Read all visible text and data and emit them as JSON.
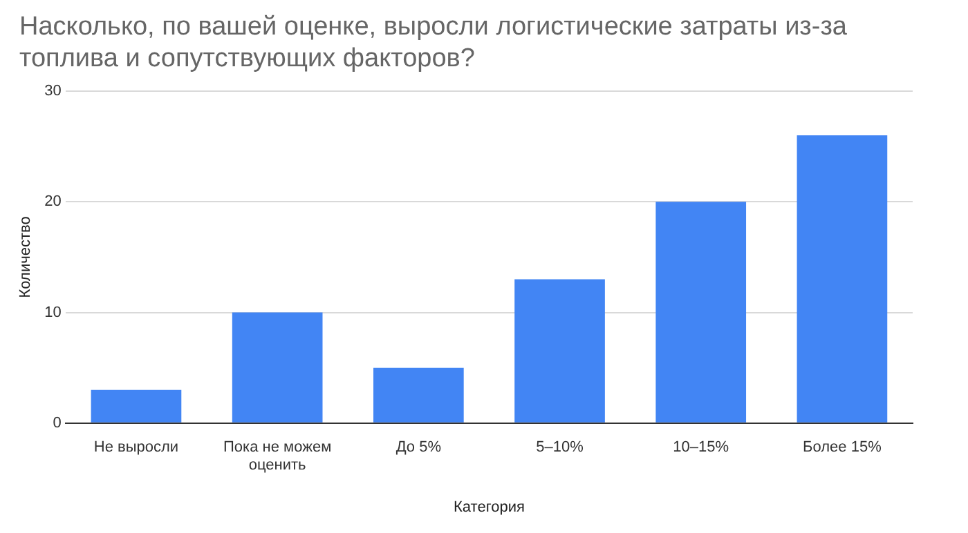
{
  "chart_data": {
    "type": "bar",
    "title": "Насколько, по вашей оценке, выросли логистические затраты из-за топлива и сопутствующих факторов?",
    "xlabel": "Категория",
    "ylabel": "Количество",
    "categories": [
      "Не выросли",
      "Пока не можем оценить",
      "До 5%",
      "5–10%",
      "10–15%",
      "Более 15%"
    ],
    "values": [
      3,
      10,
      5,
      13,
      20,
      26
    ],
    "color": "#4285f4",
    "ylim": [
      0,
      30
    ],
    "yticks": [
      0,
      10,
      20,
      30
    ],
    "grid": "y",
    "legend": false
  }
}
